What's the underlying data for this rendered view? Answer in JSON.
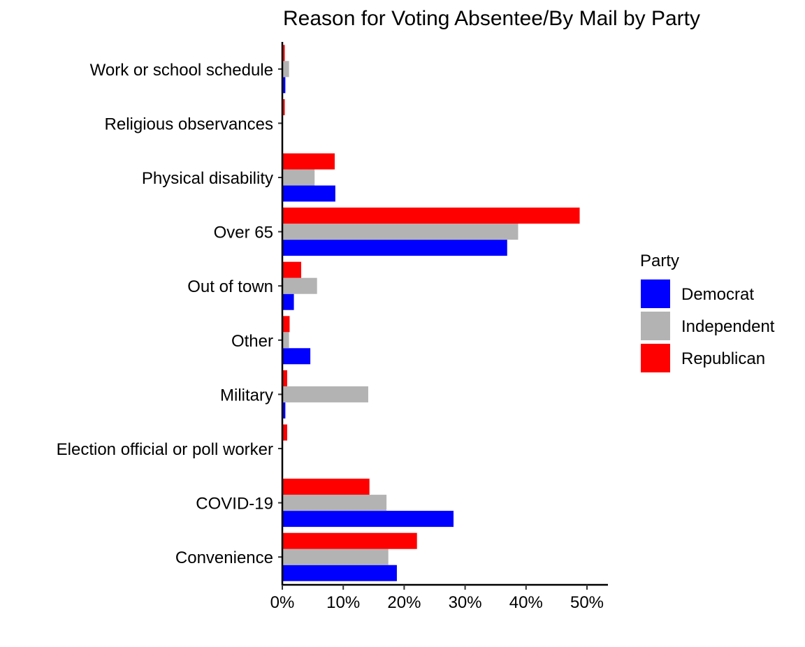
{
  "chart_data": {
    "type": "bar",
    "orientation": "horizontal",
    "title": "Reason for Voting Absentee/By Mail by Party",
    "xlabel": "",
    "ylabel": "",
    "xlim": [
      0,
      0.535
    ],
    "x_ticks": [
      0,
      0.1,
      0.2,
      0.3,
      0.4,
      0.5
    ],
    "x_tick_labels": [
      "0%",
      "10%",
      "20%",
      "30%",
      "40%",
      "50%"
    ],
    "categories": [
      "Convenience",
      "COVID-19",
      "Election official or poll worker",
      "Military",
      "Other",
      "Out of town",
      "Over 65",
      "Physical disability",
      "Religious observances",
      "Work or school schedule"
    ],
    "series": [
      {
        "name": "Democrat",
        "color": "#0000FF",
        "values": [
          0.188,
          0.281,
          0,
          0.005,
          0.046,
          0.019,
          0.369,
          0.087,
          0,
          0.005
        ]
      },
      {
        "name": "Independent",
        "color": "#B3B3B3",
        "values": [
          0.174,
          0.171,
          0,
          0.141,
          0.011,
          0.057,
          0.387,
          0.053,
          0,
          0.011
        ]
      },
      {
        "name": "Republican",
        "color": "#FF0000",
        "values": [
          0.221,
          0.143,
          0.008,
          0.008,
          0.012,
          0.031,
          0.488,
          0.086,
          0.004,
          0.004
        ]
      }
    ],
    "legend": {
      "title": "Party",
      "position": "right",
      "entries": [
        "Democrat",
        "Independent",
        "Republican"
      ]
    },
    "grid": false
  }
}
